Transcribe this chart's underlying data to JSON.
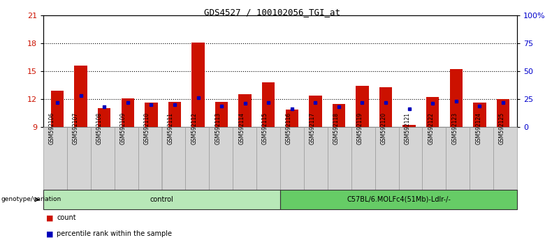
{
  "title": "GDS4527 / 100102056_TGI_at",
  "samples": [
    "GSM592106",
    "GSM592107",
    "GSM592108",
    "GSM592109",
    "GSM592110",
    "GSM592111",
    "GSM592112",
    "GSM592113",
    "GSM592114",
    "GSM592115",
    "GSM592116",
    "GSM592117",
    "GSM592118",
    "GSM592119",
    "GSM592120",
    "GSM592121",
    "GSM592122",
    "GSM592123",
    "GSM592124",
    "GSM592125"
  ],
  "counts": [
    12.9,
    15.6,
    11.0,
    12.1,
    11.6,
    11.7,
    18.1,
    11.7,
    12.5,
    13.8,
    10.9,
    12.4,
    11.5,
    13.4,
    13.3,
    9.2,
    12.2,
    15.2,
    11.6,
    12.0
  ],
  "percentile_ranks": [
    22,
    28,
    18,
    22,
    20,
    20,
    26,
    19,
    21,
    22,
    16,
    22,
    18,
    22,
    22,
    16,
    21,
    23,
    19,
    22
  ],
  "baseline": 9,
  "ylim_left": [
    9,
    21
  ],
  "ylim_right": [
    0,
    100
  ],
  "yticks_left": [
    9,
    12,
    15,
    18,
    21
  ],
  "yticks_right": [
    0,
    25,
    50,
    75,
    100
  ],
  "ytick_labels_right": [
    "0",
    "25",
    "50",
    "75",
    "100%"
  ],
  "dotted_lines": [
    12,
    15,
    18
  ],
  "bar_color": "#cc1100",
  "percentile_color": "#0000bb",
  "group1_label": "control",
  "group2_label": "C57BL/6.MOLFc4(51Mb)-Ldlr-/-",
  "group1_color": "#b8e8b8",
  "group2_color": "#66cc66",
  "genotype_label": "genotype/variation",
  "legend_count": "count",
  "legend_percentile": "percentile rank within the sample",
  "axis_color_left": "#cc1100",
  "axis_color_right": "#0000cc",
  "bg_color": "#ffffff",
  "title_fontsize": 9,
  "bar_width": 0.55,
  "sample_box_color": "#d4d4d4",
  "sample_box_edge": "#999999"
}
